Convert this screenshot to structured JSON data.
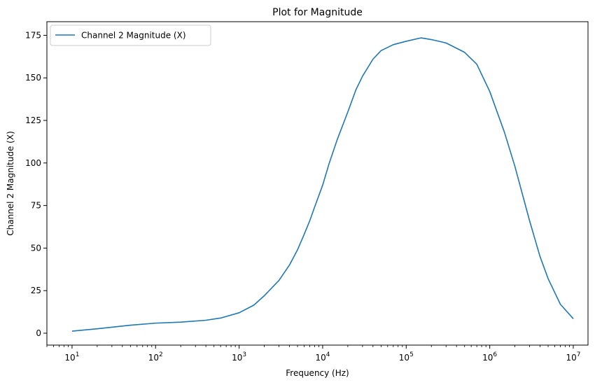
{
  "chart_data": {
    "type": "line",
    "title": "Plot for Magnitude",
    "xlabel": "Frequency (Hz)",
    "ylabel": "Channel 2 Magnitude (X)",
    "xscale": "log",
    "xlim": [
      5,
      15000000
    ],
    "ylim": [
      -7,
      183
    ],
    "grid": false,
    "legend_position": "upper-left",
    "x_ticks": [
      {
        "value": 10,
        "base": "10",
        "exp": "1"
      },
      {
        "value": 100,
        "base": "10",
        "exp": "2"
      },
      {
        "value": 1000,
        "base": "10",
        "exp": "3"
      },
      {
        "value": 10000,
        "base": "10",
        "exp": "4"
      },
      {
        "value": 100000,
        "base": "10",
        "exp": "5"
      },
      {
        "value": 1000000,
        "base": "10",
        "exp": "6"
      },
      {
        "value": 10000000,
        "base": "10",
        "exp": "7"
      }
    ],
    "y_ticks": [
      {
        "value": 0,
        "label": "0"
      },
      {
        "value": 25,
        "label": "25"
      },
      {
        "value": 50,
        "label": "50"
      },
      {
        "value": 75,
        "label": "75"
      },
      {
        "value": 100,
        "label": "100"
      },
      {
        "value": 125,
        "label": "125"
      },
      {
        "value": 150,
        "label": "150"
      },
      {
        "value": 175,
        "label": "175"
      }
    ],
    "series": [
      {
        "name": "Channel 2 Magnitude (X)",
        "color": "#1f77b4",
        "points": [
          [
            10,
            1.2
          ],
          [
            20,
            2.6
          ],
          [
            50,
            4.7
          ],
          [
            100,
            5.9
          ],
          [
            200,
            6.5
          ],
          [
            400,
            7.6
          ],
          [
            600,
            8.9
          ],
          [
            1000,
            12
          ],
          [
            1500,
            16.5
          ],
          [
            2000,
            22
          ],
          [
            3000,
            31
          ],
          [
            4000,
            40
          ],
          [
            5000,
            49
          ],
          [
            6000,
            58
          ],
          [
            7000,
            66
          ],
          [
            8000,
            74
          ],
          [
            10000,
            87
          ],
          [
            12000,
            100
          ],
          [
            15000,
            114
          ],
          [
            20000,
            130
          ],
          [
            25000,
            143
          ],
          [
            30000,
            151
          ],
          [
            40000,
            161
          ],
          [
            50000,
            166
          ],
          [
            70000,
            169.5
          ],
          [
            100000,
            171.5
          ],
          [
            150000,
            173.5
          ],
          [
            200000,
            172.5
          ],
          [
            300000,
            170.5
          ],
          [
            500000,
            165
          ],
          [
            700000,
            158
          ],
          [
            1000000,
            142
          ],
          [
            1500000,
            118
          ],
          [
            2000000,
            98
          ],
          [
            3000000,
            66
          ],
          [
            4000000,
            45
          ],
          [
            5000000,
            32
          ],
          [
            7000000,
            17
          ],
          [
            10000000,
            8.5
          ]
        ]
      }
    ]
  }
}
